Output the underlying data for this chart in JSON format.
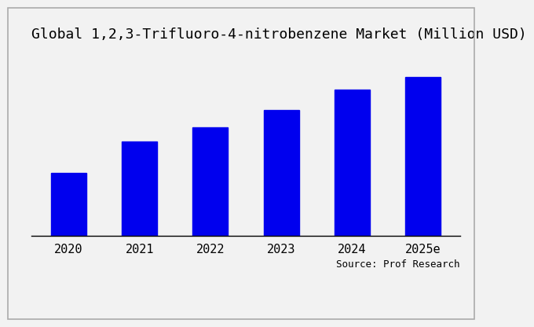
{
  "title": "Global 1,2,3-Trifluoro-4-nitrobenzene Market (Million USD)",
  "categories": [
    "2020",
    "2021",
    "2022",
    "2023",
    "2024",
    "2025e"
  ],
  "values": [
    30,
    45,
    52,
    60,
    70,
    76
  ],
  "bar_color": "#0000EE",
  "background_color": "#f2f2f2",
  "source_text": "Source: Prof Research",
  "title_fontsize": 13,
  "tick_fontsize": 11,
  "source_fontsize": 9,
  "ylim": [
    0,
    88
  ],
  "bar_width": 0.5
}
